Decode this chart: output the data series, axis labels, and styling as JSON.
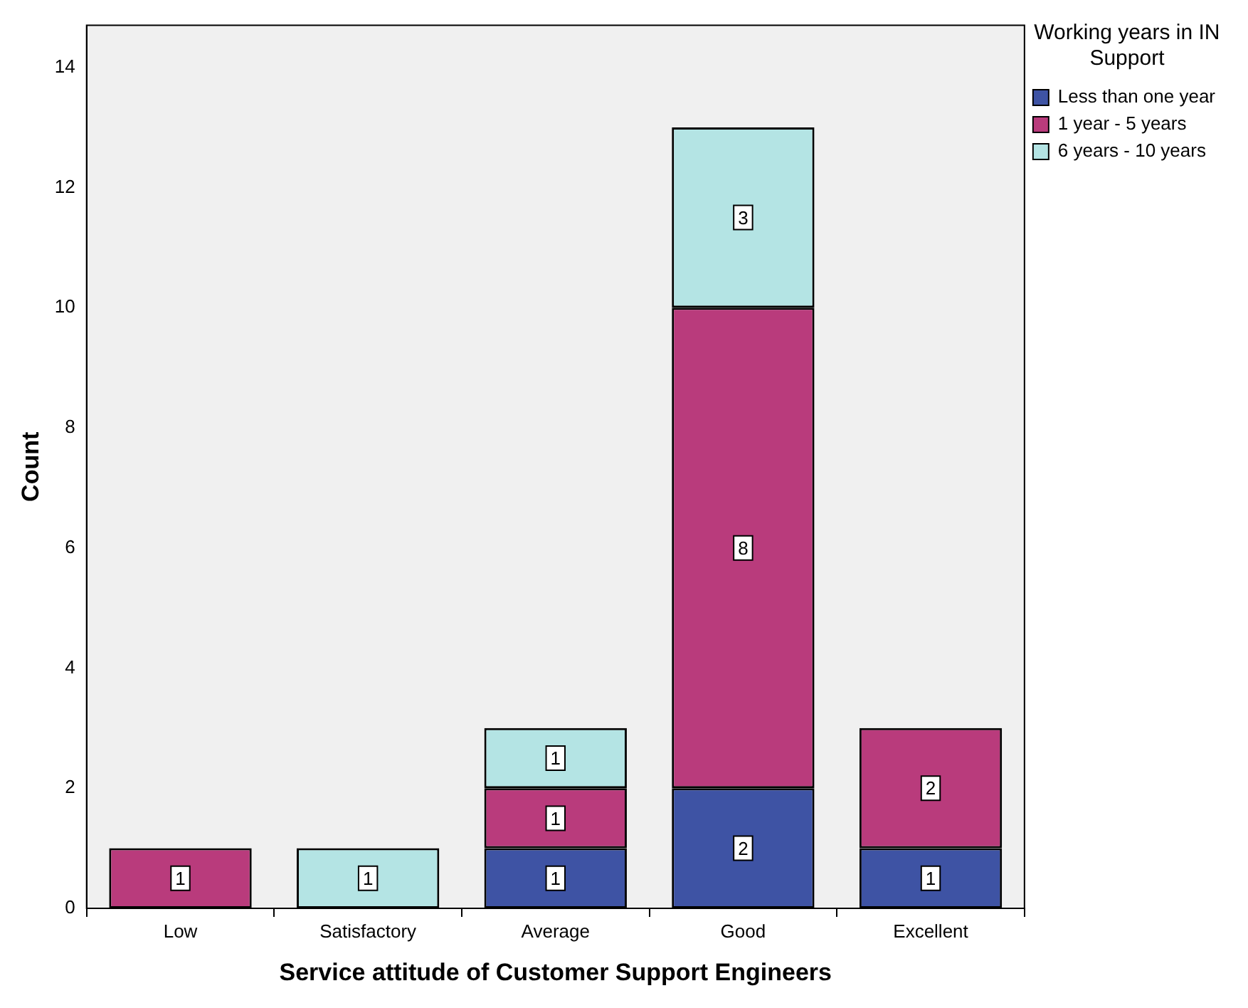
{
  "chart_data": {
    "type": "bar",
    "stacked": true,
    "xlabel": "Service attitude of Customer Support Engineers",
    "ylabel": "Count",
    "legend_title": "Working years in IN Support",
    "legend": "top right",
    "data_labels": true,
    "categories": [
      "Low",
      "Satisfactory",
      "Average",
      "Good",
      "Excellent"
    ],
    "ylim": [
      0,
      14.7
    ],
    "yticks": [
      0,
      2,
      4,
      6,
      8,
      10,
      12,
      14
    ],
    "series": [
      {
        "name": "Less than one year",
        "color": "#3e53a4",
        "values": [
          null,
          null,
          1,
          2,
          1
        ]
      },
      {
        "name": "1 year - 5 years",
        "color": "#b93b7c",
        "values": [
          1,
          null,
          1,
          8,
          2
        ]
      },
      {
        "name": "6 years - 10 years",
        "color": "#b4e4e4",
        "values": [
          null,
          1,
          1,
          3,
          null
        ]
      }
    ]
  }
}
